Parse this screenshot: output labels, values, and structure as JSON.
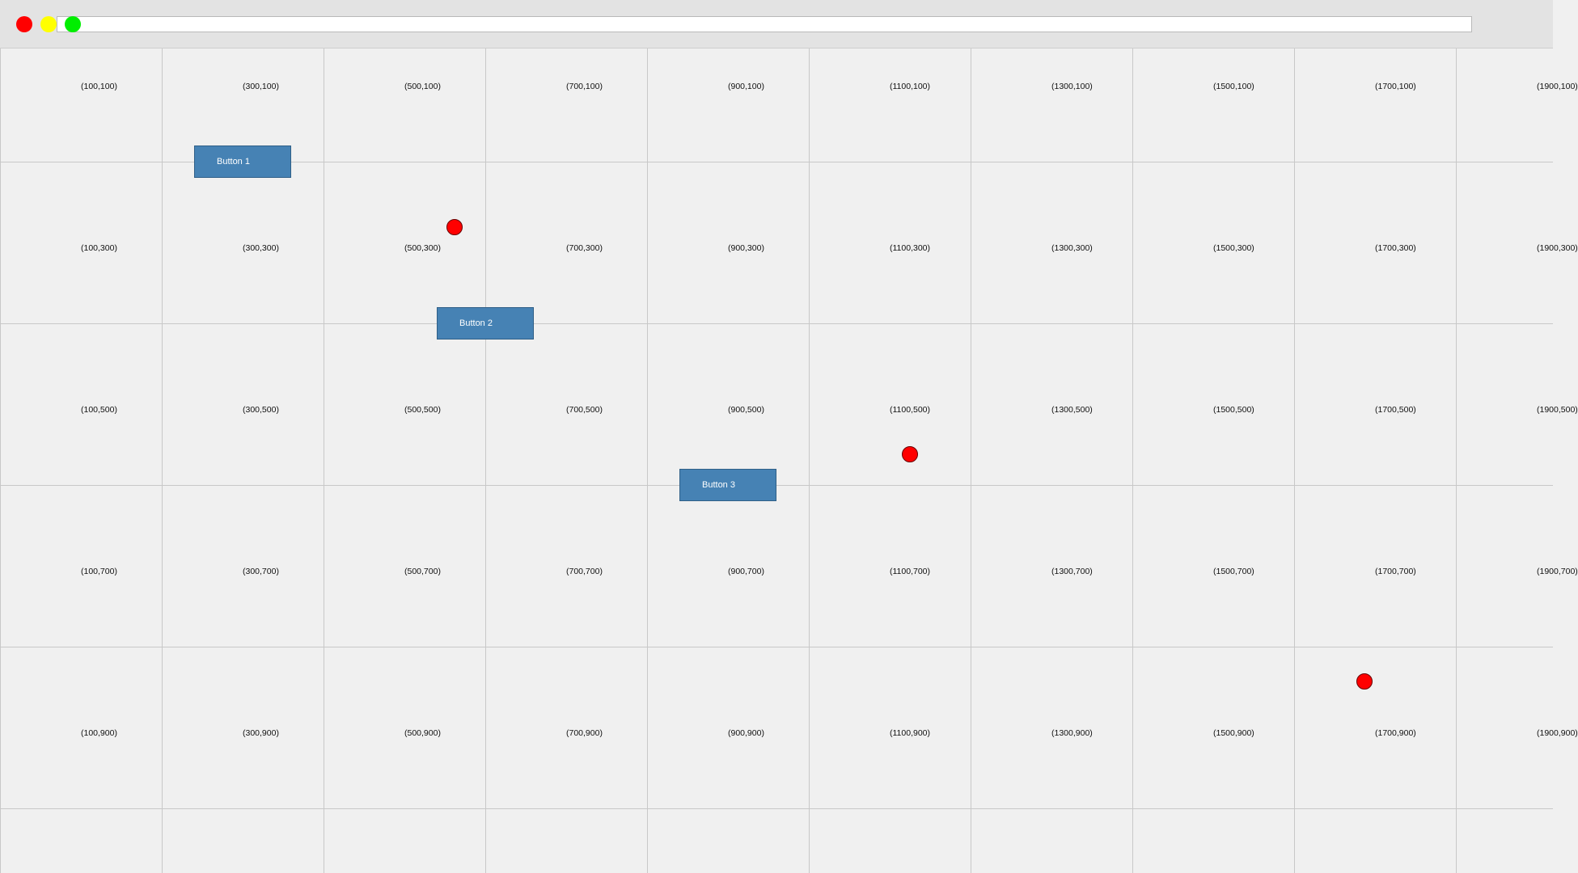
{
  "colors": {
    "window_close": "#ff0000",
    "window_minimize": "#ffff00",
    "window_maximize": "#00ee00",
    "button_fill": "#4682b4",
    "target_dot": "#ff0000",
    "grid_line": "#c8c8c8",
    "background": "#f0f0f0"
  },
  "titlebar": {
    "address_value": "",
    "address_placeholder": ""
  },
  "buttons": {
    "button_1": "Button 1",
    "button_2": "Button 2",
    "button_3": "Button 3"
  },
  "coordinate_labels": [
    [
      "(100,100)",
      "(300,100)",
      "(500,100)",
      "(700,100)",
      "(900,100)",
      "(1100,100)",
      "(1300,100)",
      "(1500,100)",
      "(1700,100)",
      "(1900,100)"
    ],
    [
      "(100,300)",
      "(300,300)",
      "(500,300)",
      "(700,300)",
      "(900,300)",
      "(1100,300)",
      "(1300,300)",
      "(1500,300)",
      "(1700,300)",
      "(1900,300)"
    ],
    [
      "(100,500)",
      "(300,500)",
      "(500,500)",
      "(700,500)",
      "(900,500)",
      "(1100,500)",
      "(1300,500)",
      "(1500,500)",
      "(1700,500)",
      "(1900,500)"
    ],
    [
      "(100,700)",
      "(300,700)",
      "(500,700)",
      "(700,700)",
      "(900,700)",
      "(1100,700)",
      "(1300,700)",
      "(1500,700)",
      "(1700,700)",
      "(1900,700)"
    ],
    [
      "(100,900)",
      "(300,900)",
      "(500,900)",
      "(700,900)",
      "(900,900)",
      "(1100,900)",
      "(1300,900)",
      "(1500,900)",
      "(1700,900)",
      "(1900,900)"
    ]
  ]
}
